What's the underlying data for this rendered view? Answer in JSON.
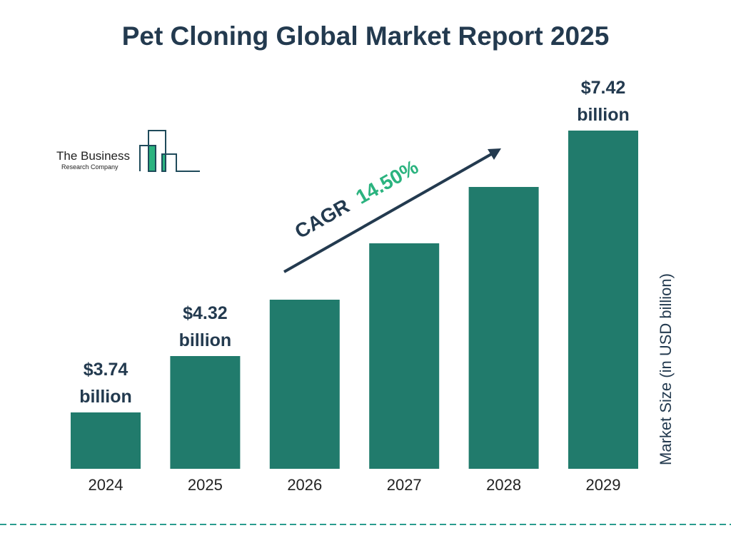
{
  "title": "Pet Cloning Global Market Report 2025",
  "logo": {
    "line1": "The Business",
    "line2": "Research Company"
  },
  "cagr": {
    "label": "CAGR",
    "value": "14.50%"
  },
  "colors": {
    "bar": "#217b6c",
    "text": "#233a4f",
    "cagr": "#2bb37f",
    "divider": "#2a9d8f"
  },
  "chart_data": {
    "type": "bar",
    "title": "Pet Cloning Global Market Report 2025",
    "categories": [
      "2024",
      "2025",
      "2026",
      "2027",
      "2028",
      "2029"
    ],
    "values": [
      3.74,
      4.32,
      4.95,
      5.66,
      6.48,
      7.42
    ],
    "data_labels": [
      {
        "index": 0,
        "line1": "$3.74",
        "line2": "billion"
      },
      {
        "index": 1,
        "line1": "$4.32",
        "line2": "billion"
      },
      {
        "index": 5,
        "line1": "$7.42",
        "line2": "billion"
      }
    ],
    "xlabel": "",
    "ylabel": "Market Size (in USD billion)",
    "grid": false,
    "annotation": "CAGR 14.50%"
  }
}
